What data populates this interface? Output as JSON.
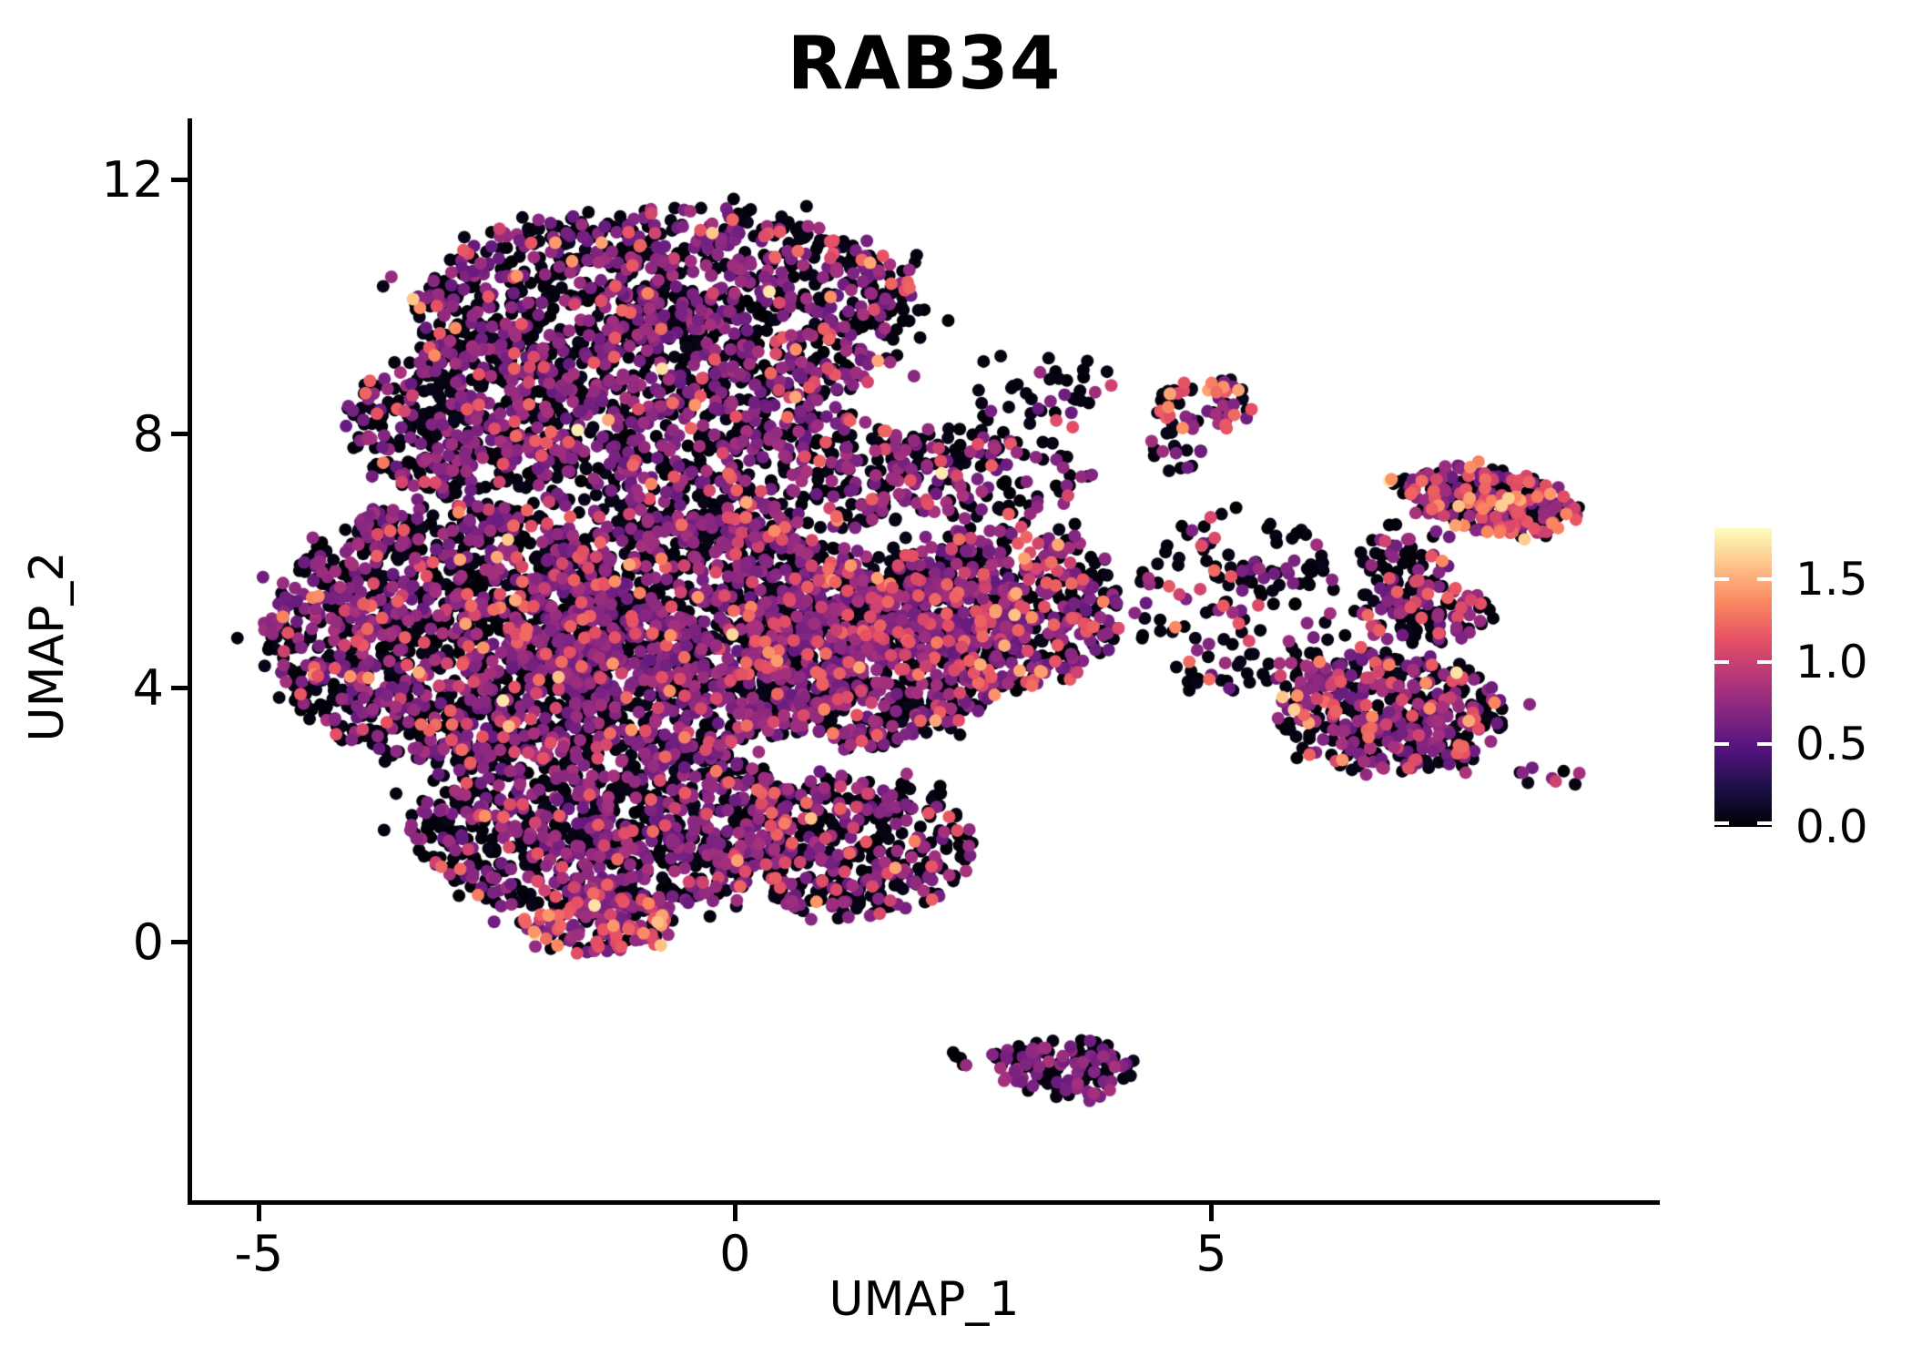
{
  "title": "RAB34",
  "axes": {
    "x": {
      "label": "UMAP_1",
      "range": [
        -5.71,
        9.68
      ],
      "ticks": [
        {
          "v": -5,
          "label": "-5"
        },
        {
          "v": 0,
          "label": "0"
        },
        {
          "v": 5,
          "label": "5"
        }
      ]
    },
    "y": {
      "label": "UMAP_2",
      "range": [
        -4.06,
        12.97
      ],
      "ticks": [
        {
          "v": 0,
          "label": "0"
        },
        {
          "v": 4,
          "label": "4"
        },
        {
          "v": 8,
          "label": "8"
        },
        {
          "v": 12,
          "label": "12"
        }
      ]
    }
  },
  "colorbar": {
    "domain": [
      0,
      1.81
    ],
    "ticks": [
      {
        "v": 1.5,
        "label": "1.5"
      },
      {
        "v": 1.0,
        "label": "1.0"
      },
      {
        "v": 0.5,
        "label": "0.5"
      },
      {
        "v": 0.0,
        "label": "0.0"
      }
    ],
    "colormap": "magma",
    "stops": [
      [
        0,
        "#000004"
      ],
      [
        0.125,
        "#1c1044"
      ],
      [
        0.25,
        "#4f127b"
      ],
      [
        0.375,
        "#812581"
      ],
      [
        0.5,
        "#b5367a"
      ],
      [
        0.625,
        "#e55064"
      ],
      [
        0.75,
        "#fb8761"
      ],
      [
        0.875,
        "#fec287"
      ],
      [
        1,
        "#fcfdbf"
      ]
    ]
  },
  "chart_data": {
    "type": "scatter",
    "title": "RAB34",
    "xlabel": "UMAP_1",
    "ylabel": "UMAP_2",
    "x_range": [
      -5.71,
      9.68
    ],
    "y_range": [
      -4.06,
      12.97
    ],
    "grid": false,
    "legend_position": "right-colorbar",
    "color_domain": [
      0,
      1.81
    ],
    "point_radius_px": 7,
    "seed": 1337,
    "expression_levels": [
      {
        "name": "black",
        "range": [
          0.0,
          0.08
        ]
      },
      {
        "name": "purple",
        "range": [
          0.55,
          0.85
        ]
      },
      {
        "name": "pink",
        "range": [
          1.0,
          1.25
        ]
      },
      {
        "name": "orange",
        "range": [
          1.3,
          1.5
        ]
      },
      {
        "name": "pale",
        "range": [
          1.55,
          1.75
        ]
      }
    ],
    "clusters": [
      {
        "name": "upper-lobe",
        "cx": -0.7,
        "cy": 9.9,
        "rx": 2.7,
        "ry": 1.65,
        "n": 1350,
        "mix": {
          "black": 0.57,
          "purple": 0.355,
          "pink": 0.06,
          "orange": 0.012,
          "pale": 0.003
        }
      },
      {
        "name": "upper-left-shoulder",
        "cx": -2.8,
        "cy": 8.2,
        "rx": 1.3,
        "ry": 1.2,
        "n": 450,
        "mix": {
          "black": 0.55,
          "purple": 0.37,
          "pink": 0.07,
          "orange": 0.01
        }
      },
      {
        "name": "left-mid",
        "cx": -3.0,
        "cy": 4.9,
        "rx": 1.9,
        "ry": 2.05,
        "n": 1350,
        "mix": {
          "black": 0.55,
          "purple": 0.37,
          "pink": 0.07,
          "orange": 0.008,
          "pale": 0.002
        }
      },
      {
        "name": "center-mid",
        "cx": -0.4,
        "cy": 4.9,
        "rx": 2.0,
        "ry": 1.85,
        "n": 1450,
        "mix": {
          "black": 0.56,
          "purple": 0.36,
          "pink": 0.07,
          "orange": 0.008,
          "pale": 0.002
        }
      },
      {
        "name": "waist",
        "cx": 0.0,
        "cy": 7.4,
        "rx": 2.2,
        "ry": 1.1,
        "n": 600,
        "mix": {
          "black": 0.55,
          "purple": 0.36,
          "pink": 0.075,
          "orange": 0.013,
          "pale": 0.002
        }
      },
      {
        "name": "center-right-mid",
        "cx": 1.5,
        "cy": 4.6,
        "rx": 1.35,
        "ry": 1.5,
        "n": 700,
        "mix": {
          "black": 0.52,
          "purple": 0.38,
          "pink": 0.085,
          "orange": 0.013,
          "pale": 0.002
        }
      },
      {
        "name": "right-arm",
        "cx": 2.8,
        "cy": 5.3,
        "rx": 1.3,
        "ry": 1.3,
        "n": 560,
        "mix": {
          "black": 0.47,
          "purple": 0.41,
          "pink": 0.1,
          "orange": 0.018,
          "pale": 0.002
        }
      },
      {
        "name": "lower-lobe",
        "cx": -1.4,
        "cy": 1.9,
        "rx": 2.0,
        "ry": 1.5,
        "n": 1050,
        "mix": {
          "black": 0.57,
          "purple": 0.36,
          "pink": 0.06,
          "orange": 0.008,
          "pale": 0.002
        }
      },
      {
        "name": "lower-right-bump",
        "cx": 1.2,
        "cy": 1.5,
        "rx": 1.3,
        "ry": 1.1,
        "n": 430,
        "mix": {
          "black": 0.56,
          "purple": 0.37,
          "pink": 0.06,
          "orange": 0.008,
          "pale": 0.002
        }
      },
      {
        "name": "bottom-tip",
        "cx": -1.45,
        "cy": 0.3,
        "rx": 0.8,
        "ry": 0.5,
        "n": 170,
        "mix": {
          "black": 0.36,
          "purple": 0.42,
          "pink": 0.18,
          "orange": 0.03,
          "pale": 0.01
        }
      },
      {
        "name": "bridge-top",
        "cx": 2.5,
        "cy": 7.4,
        "rx": 1.2,
        "ry": 0.75,
        "n": 150,
        "mix": {
          "black": 0.6,
          "purple": 0.31,
          "pink": 0.08,
          "orange": 0.01
        }
      },
      {
        "name": "bay-sparse",
        "cx": 3.2,
        "cy": 8.7,
        "rx": 0.85,
        "ry": 0.6,
        "n": 40,
        "mix": {
          "black": 0.75,
          "purple": 0.2,
          "pink": 0.05
        }
      },
      {
        "name": "small-top-cluster",
        "cx": 4.95,
        "cy": 8.45,
        "rx": 0.55,
        "ry": 0.42,
        "n": 60,
        "mix": {
          "black": 0.42,
          "purple": 0.33,
          "pink": 0.2,
          "orange": 0.05
        }
      },
      {
        "name": "small-top-tail",
        "cx": 4.62,
        "cy": 7.7,
        "rx": 0.3,
        "ry": 0.5,
        "n": 16,
        "mix": {
          "black": 0.6,
          "purple": 0.3,
          "pink": 0.1
        }
      },
      {
        "name": "mid-bridge-sparse",
        "cx": 5.3,
        "cy": 5.3,
        "rx": 1.15,
        "ry": 1.5,
        "n": 160,
        "mix": {
          "black": 0.63,
          "purple": 0.29,
          "pink": 0.07,
          "orange": 0.01
        }
      },
      {
        "name": "far-right-top",
        "cx": 7.9,
        "cy": 6.95,
        "rx": 0.95,
        "ry": 0.5,
        "rot": -18,
        "n": 270,
        "mix": {
          "black": 0.38,
          "purple": 0.33,
          "pink": 0.21,
          "orange": 0.07,
          "pale": 0.01
        }
      },
      {
        "name": "far-right-top-tail",
        "cx": 7.05,
        "cy": 6.05,
        "rx": 0.5,
        "ry": 0.55,
        "n": 60,
        "mix": {
          "black": 0.55,
          "purple": 0.33,
          "pink": 0.1,
          "orange": 0.02
        }
      },
      {
        "name": "right-mid-cluster",
        "cx": 7.2,
        "cy": 5.15,
        "rx": 0.75,
        "ry": 0.5,
        "n": 120,
        "mix": {
          "black": 0.5,
          "purple": 0.4,
          "pink": 0.09,
          "orange": 0.01
        }
      },
      {
        "name": "right-lower-cluster",
        "cx": 6.9,
        "cy": 3.6,
        "rx": 1.2,
        "ry": 0.95,
        "n": 430,
        "mix": {
          "black": 0.47,
          "purple": 0.37,
          "pink": 0.13,
          "orange": 0.025,
          "pale": 0.005
        }
      },
      {
        "name": "right-tail",
        "cx": 8.5,
        "cy": 2.6,
        "rx": 0.4,
        "ry": 0.22,
        "n": 9,
        "mix": {
          "black": 0.4,
          "purple": 0.3,
          "pink": 0.3
        }
      },
      {
        "name": "bottom-island",
        "cx": 3.5,
        "cy": -2.0,
        "rx": 0.72,
        "ry": 0.48,
        "n": 115,
        "mix": {
          "black": 0.58,
          "purple": 0.42
        }
      },
      {
        "name": "bottom-island-tail",
        "cx": 2.7,
        "cy": -1.8,
        "rx": 0.5,
        "ry": 0.12,
        "n": 13,
        "mix": {
          "black": 0.6,
          "purple": 0.4
        }
      }
    ]
  }
}
